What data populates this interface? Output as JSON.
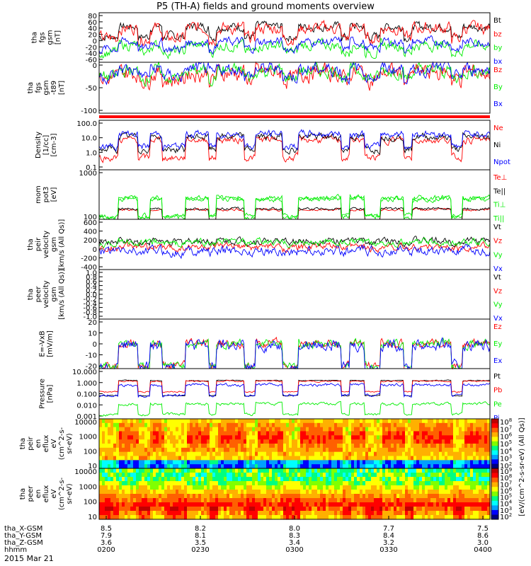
{
  "chart_data": {
    "type": "line",
    "title": "P5 (TH-A) fields and ground moments overview",
    "date_label": "2015 Mar 21",
    "x_axis": {
      "rows": [
        {
          "name": "tha_X-GSM",
          "values": [
            "8.5",
            "8.2",
            "8.0",
            "7.7",
            "7.5"
          ]
        },
        {
          "name": "tha_Y-GSM",
          "values": [
            "7.9",
            "8.1",
            "8.3",
            "8.4",
            "8.6"
          ]
        },
        {
          "name": "tha_Z-GSM",
          "values": [
            "3.6",
            "3.5",
            "3.4",
            "3.2",
            "3.0"
          ]
        },
        {
          "name": "hhmm",
          "values": [
            "0200",
            "0230",
            "0300",
            "0330",
            "0400"
          ]
        }
      ]
    },
    "panels": [
      {
        "id": "fgs-gsm",
        "ylabel": [
          "tha",
          "fgs",
          "gsm",
          "[nT]"
        ],
        "yticks": [
          "80",
          "60",
          "40",
          "20",
          "0",
          "-20",
          "-40",
          "-60"
        ],
        "ylim": [
          -60,
          85
        ],
        "series": [
          {
            "name": "Bt",
            "color": "#000000",
            "level": 45,
            "amp": 10
          },
          {
            "name": "bz",
            "color": "#ff0000",
            "level": 40,
            "amp": 14
          },
          {
            "name": "by",
            "color": "#00ee00",
            "level": -10,
            "amp": 12
          },
          {
            "name": "bx",
            "color": "#0000ff",
            "level": 0,
            "amp": 10
          }
        ]
      },
      {
        "id": "fgs-gsm-t89",
        "ylabel": [
          "tha",
          "fgs",
          "gsm",
          "-t89",
          "[nT]"
        ],
        "yticks": [
          "0",
          "-50",
          "-100"
        ],
        "ylim": [
          -120,
          30
        ],
        "series": [
          {
            "name": "Bz",
            "color": "#ff0000",
            "level": 0,
            "amp": 20
          },
          {
            "name": "By",
            "color": "#00ee00",
            "level": 5,
            "amp": 15
          },
          {
            "name": "Bx",
            "color": "#0000ff",
            "level": 10,
            "amp": 15
          }
        ]
      },
      {
        "id": "density",
        "ylabel": [
          "Density",
          "[1/cc]",
          "[cm-3]"
        ],
        "yticks": [
          "100.0",
          "10.0",
          "1.0",
          "0.1"
        ],
        "log": true,
        "ylim": [
          0.1,
          200
        ],
        "series": [
          {
            "name": "Ne",
            "color": "#ff0000",
            "level": 1,
            "amp": 0.6
          },
          {
            "name": "Ni",
            "color": "#000000",
            "level": 1.2,
            "amp": 0.6
          },
          {
            "name": "Npot",
            "color": "#0000ff",
            "level": 1.4,
            "amp": 0.6
          }
        ]
      },
      {
        "id": "moms",
        "ylabel": [
          "mom",
          "pot3",
          "[eV]"
        ],
        "yticks": [
          "1000",
          "100"
        ],
        "log": true,
        "ylim": [
          40,
          8000
        ],
        "series": [
          {
            "name": "Te⊥",
            "color": "#ff0000",
            "level": 2.05,
            "amp": 0.15
          },
          {
            "name": "Te||",
            "color": "#000000",
            "level": 2.1,
            "amp": 0.15
          },
          {
            "name": "Ti⊥",
            "color": "#00ee00",
            "level": 2.6,
            "amp": 0.3
          },
          {
            "name": "Ti||",
            "color": "#00ee00",
            "level": 2.55,
            "amp": 0.3
          }
        ]
      },
      {
        "id": "peir-velocity",
        "ylabel": [
          "tha",
          "peir",
          "velocity",
          "gsm",
          "[km/s (All Qs)]"
        ],
        "yticks": [
          "600",
          "400",
          "200",
          "0",
          "-200",
          "-400"
        ],
        "ylim": [
          -450,
          650
        ],
        "series": [
          {
            "name": "Vt",
            "color": "#000000",
            "level": 180,
            "amp": 60
          },
          {
            "name": "Vz",
            "color": "#ff0000",
            "level": 50,
            "amp": 60
          },
          {
            "name": "Vy",
            "color": "#00ee00",
            "level": 150,
            "amp": 60
          },
          {
            "name": "Vx",
            "color": "#0000ff",
            "level": -40,
            "amp": 80
          }
        ]
      },
      {
        "id": "peer-velocity",
        "ylabel": [
          "tha",
          "peer",
          "velocity",
          "gsm",
          "[km/s (All Qs)]"
        ],
        "yticks": [
          "1.0",
          "0.8",
          "0.6",
          "0.4",
          "0.2",
          "0.0",
          "-0.2",
          "-0.4",
          "-0.6",
          "-0.8",
          "-1.0"
        ],
        "ylim": [
          -1,
          1
        ],
        "series": [
          {
            "name": "Vt",
            "color": "#000000"
          },
          {
            "name": "Vz",
            "color": "#ff0000"
          },
          {
            "name": "Vy",
            "color": "#00ee00"
          },
          {
            "name": "Vx",
            "color": "#0000ff"
          }
        ]
      },
      {
        "id": "efield",
        "ylabel": [
          "E=-VxB",
          "[mV/m]"
        ],
        "yticks": [
          "20",
          "10",
          "0",
          "-10",
          "-20"
        ],
        "ylim": [
          -22,
          22
        ],
        "series": [
          {
            "name": "Ez",
            "color": "#ff0000",
            "level": 0,
            "amp": 3
          },
          {
            "name": "Ey",
            "color": "#00ee00",
            "level": 0,
            "amp": 3
          },
          {
            "name": "Ex",
            "color": "#0000ff",
            "level": -1,
            "amp": 4
          }
        ]
      },
      {
        "id": "pressure",
        "ylabel": [
          "Pressure",
          "[nPa]"
        ],
        "yticks": [
          "10.000",
          "1.000",
          "0.100",
          "0.010",
          "0.001"
        ],
        "log": true,
        "ylim": [
          0.001,
          10
        ],
        "series": [
          {
            "name": "Pt",
            "color": "#000000",
            "level": 0.05,
            "amp": 0.1
          },
          {
            "name": "Pb",
            "color": "#ff0000",
            "level": 0,
            "amp": 0.15
          },
          {
            "name": "Pe",
            "color": "#00ee00",
            "level": -1.8,
            "amp": 0.3
          },
          {
            "name": "Pi",
            "color": "#0000ff",
            "level": -0.3,
            "amp": 0.3
          }
        ]
      },
      {
        "id": "peir-eflux",
        "ylabel": [
          "tha",
          "peir",
          "en",
          "eflux",
          "eV",
          "(cm^2-s-",
          "sr-eV)"
        ],
        "yticks": [
          "10000",
          "1000",
          "100",
          "10"
        ],
        "spectrogram": true,
        "colorbar": {
          "ticks": [
            "10^8",
            "10^7",
            "10^6",
            "10^5",
            "10^4",
            "10^3",
            "10^2"
          ],
          "label": "[eV/(cm^2-s-sr-eV) (All Qs)]"
        }
      },
      {
        "id": "peer-eflux",
        "ylabel": [
          "tha",
          "peer",
          "en",
          "eflux",
          "eV",
          "(cm^2-s-",
          "sr-eV)"
        ],
        "yticks": [
          "10000",
          "1000",
          "100",
          "10"
        ],
        "spectrogram": true,
        "colorbar": {
          "ticks": [
            "10^9",
            "10^8",
            "10^7",
            "10^6",
            "10^5",
            "10^4",
            "10^3",
            "10^2"
          ],
          "label": "[eV/(cm^2-s-sr-eV) (All Qs)]"
        }
      }
    ]
  }
}
